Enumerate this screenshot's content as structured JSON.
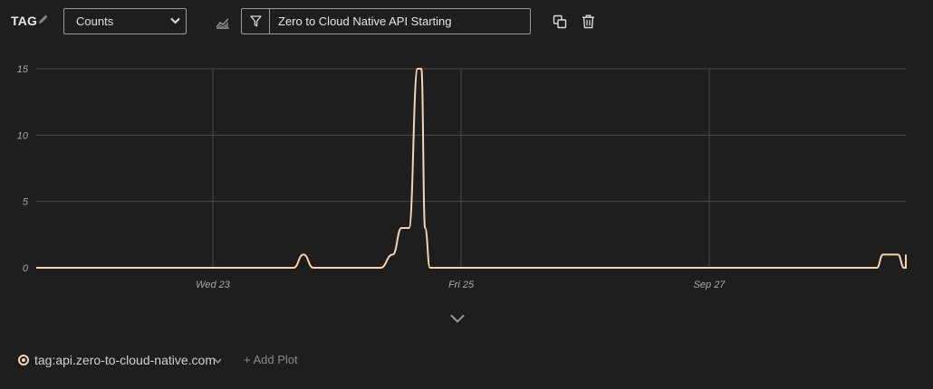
{
  "toolbar": {
    "tag_label": "TAG",
    "aggregation_select": "Counts",
    "filter_value": "Zero to Cloud Native API Starting"
  },
  "icons": {
    "pencil": "pencil-icon",
    "chevron": "chevron-down-icon",
    "chart_type": "area-chart-icon",
    "filter": "filter-icon",
    "copy": "copy-icon",
    "trash": "trash-icon",
    "expand": "chevron-down-icon"
  },
  "colors": {
    "background": "#1e1e1e",
    "series": "#f6d3b1",
    "grid": "#4a4a4a"
  },
  "chart_data": {
    "type": "line",
    "title": "",
    "xlabel": "",
    "ylabel": "",
    "ylim": [
      0,
      15
    ],
    "yticks": [
      "0",
      "5",
      "10",
      "15"
    ],
    "xtick_labels": [
      "Wed 23",
      "Fri 25",
      "Sep 27"
    ],
    "grid": true,
    "series": [
      {
        "name": "tag:api.zero-to-cloud-native.com",
        "x_days_from_wed23": [
          -2.85,
          0.5,
          0.65,
          0.73,
          0.81,
          1.35,
          1.45,
          1.52,
          1.58,
          1.65,
          1.68,
          1.71,
          1.75,
          1.79,
          5.0,
          5.35,
          5.4,
          5.52,
          5.57,
          5.6,
          5.65
        ],
        "values": [
          0,
          0,
          0,
          1,
          0,
          0,
          1,
          3,
          3,
          15,
          15,
          3,
          0,
          0,
          0,
          0,
          1,
          1,
          0,
          0,
          1
        ]
      }
    ]
  },
  "legend": {
    "series_label": "tag:api.zero-to-cloud-native.com",
    "add_plot": "+ Add Plot"
  }
}
